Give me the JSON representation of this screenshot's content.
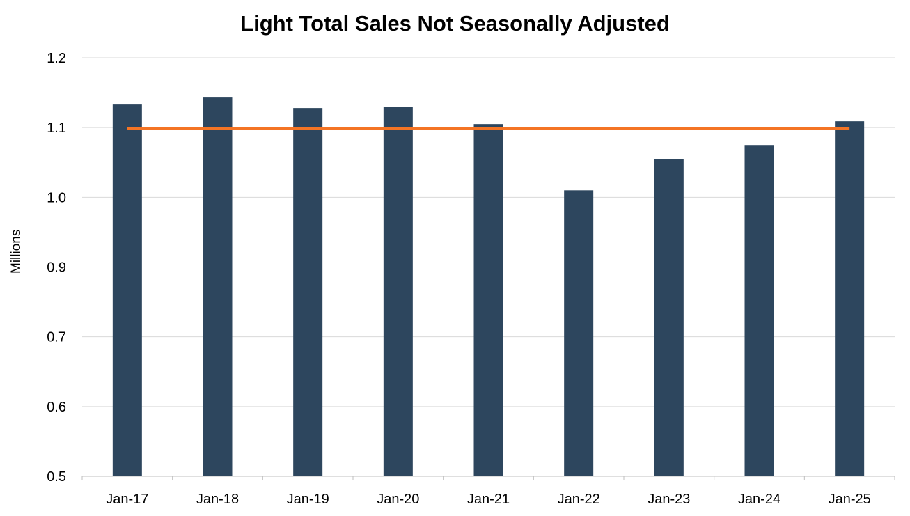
{
  "chart_data": {
    "type": "bar",
    "title": "Light Total Sales Not Seasonally Adjusted",
    "xlabel": "",
    "ylabel": "Millions",
    "y_tick_labels": [
      "1.2",
      "1.1",
      "1.0",
      "0.9",
      "0.7",
      "0.6",
      "0.5"
    ],
    "ylim": [
      0.5,
      1.2
    ],
    "grid": true,
    "legend": "none",
    "categories": [
      "Jan-17",
      "Jan-18",
      "Jan-19",
      "Jan-20",
      "Jan-21",
      "Jan-22",
      "Jan-23",
      "Jan-24",
      "Jan-25"
    ],
    "series": [
      {
        "type": "bar",
        "values": [
          1.133,
          1.143,
          1.128,
          1.13,
          1.105,
          1.01,
          1.055,
          1.075,
          1.109
        ],
        "color": "#2d465e"
      },
      {
        "type": "line",
        "values": [
          1.099,
          1.099,
          1.099,
          1.099,
          1.099,
          1.099,
          1.099,
          1.099,
          1.099
        ],
        "color": "#f47424"
      }
    ]
  }
}
